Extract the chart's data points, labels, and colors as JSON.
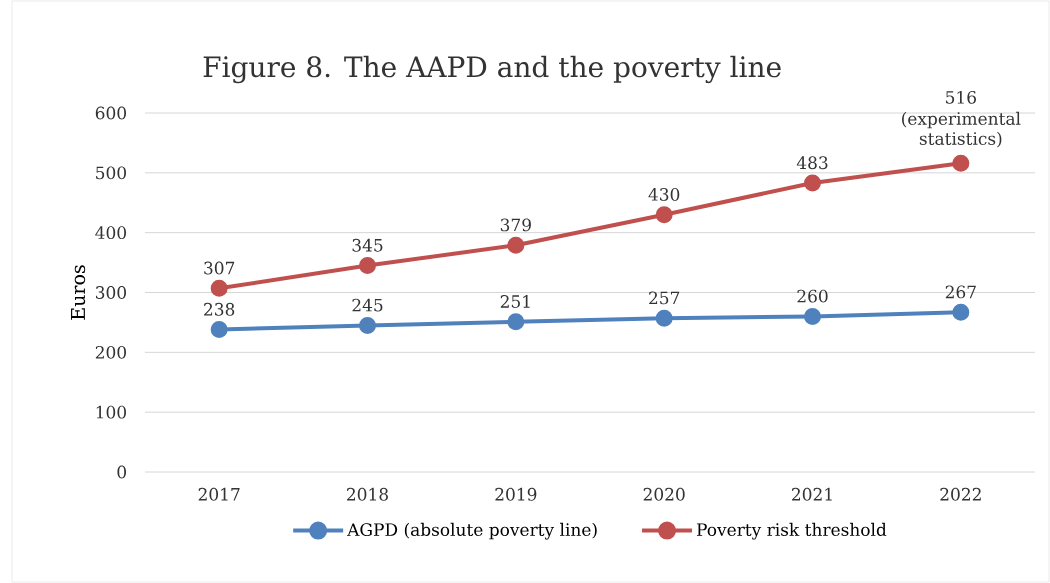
{
  "chart_data": {
    "type": "line",
    "title": "Figure 8. The AAPD and the poverty line",
    "ylabel": "Euros",
    "categories": [
      "2017",
      "2018",
      "2019",
      "2020",
      "2021",
      "2022"
    ],
    "series": [
      {
        "name": "AGPD (absolute poverty line)",
        "color": "#4f81bd",
        "values": [
          238,
          245,
          251,
          257,
          260,
          267
        ]
      },
      {
        "name": "Poverty risk threshold",
        "color": "#c0504d",
        "values": [
          307,
          345,
          379,
          430,
          483,
          516
        ]
      }
    ],
    "ylim": [
      0,
      600
    ],
    "yticks": [
      0,
      100,
      200,
      300,
      400,
      500,
      600
    ],
    "grid": "y",
    "legend": "bottom",
    "marker": "circle",
    "data_labels": true,
    "annotations": [
      {
        "text": "(experimental statistics)",
        "x": "2022",
        "y": 516
      }
    ]
  }
}
